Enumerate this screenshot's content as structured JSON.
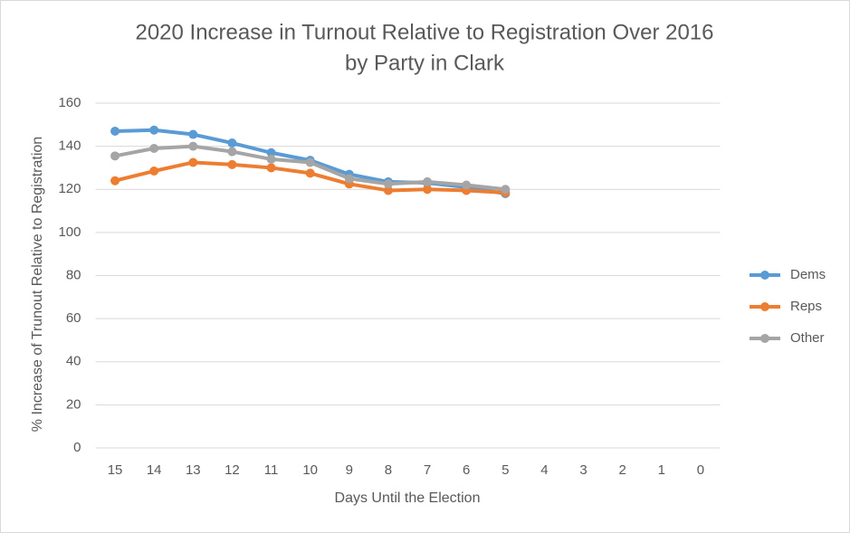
{
  "chart_data": {
    "type": "line",
    "title": [
      "2020 Increase in Turnout Relative to Registration Over 2016",
      "by Party in Clark"
    ],
    "x_label": "Days Until the Election",
    "y_label": "% Increase of Trunout Relative to Registration",
    "categories": [
      "15",
      "14",
      "13",
      "12",
      "11",
      "10",
      "9",
      "8",
      "7",
      "6",
      "5",
      "4",
      "3",
      "2",
      "1",
      "0"
    ],
    "series": [
      {
        "name": "Dems",
        "color": "#5b9bd5",
        "values": [
          147,
          147.5,
          145.5,
          141.5,
          137,
          133.5,
          127,
          123.5,
          123,
          121,
          118,
          null,
          null,
          null,
          null,
          null
        ]
      },
      {
        "name": "Reps",
        "color": "#ed7d31",
        "values": [
          124,
          128.5,
          132.5,
          131.5,
          130,
          127.5,
          122.5,
          119.5,
          120,
          119.5,
          118.5,
          null,
          null,
          null,
          null,
          null
        ]
      },
      {
        "name": "Other",
        "color": "#a5a5a5",
        "values": [
          135.5,
          139,
          140,
          137.5,
          134,
          132.5,
          125,
          122.5,
          123.5,
          122,
          120,
          null,
          null,
          null,
          null,
          null
        ]
      }
    ],
    "ylim": [
      0,
      160
    ],
    "yticks": [
      0,
      20,
      40,
      60,
      80,
      100,
      120,
      140,
      160
    ],
    "grid": true,
    "legend": "right"
  }
}
